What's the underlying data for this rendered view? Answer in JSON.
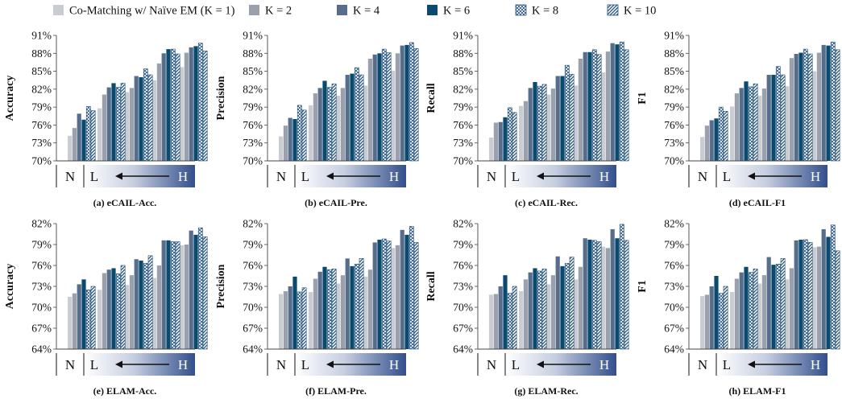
{
  "legend": {
    "items": [
      {
        "label": "Co-Matching w/ Naïve EM (K = 1)",
        "color": "#c9ccd3",
        "pattern": "solid"
      },
      {
        "label": "K = 2",
        "color": "#9aa1ad",
        "pattern": "solid"
      },
      {
        "label": "K = 4",
        "color": "#566e8c",
        "pattern": "solid"
      },
      {
        "label": "K = 6",
        "color": "#0b4a6f",
        "pattern": "solid"
      },
      {
        "label": "K = 8",
        "color": "#24527a",
        "pattern": "crosshatch"
      },
      {
        "label": "K = 10",
        "color": "#24527a",
        "pattern": "diagonal"
      }
    ]
  },
  "xaxis_groups": {
    "none_label": "N",
    "low_label": "L",
    "high_label": "H"
  },
  "chart_data": [
    {
      "type": "bar",
      "caption": "(a) eCAIL-Acc.",
      "ylabel": "Accuracy",
      "yticks": [
        "70%",
        "73%",
        "76%",
        "79%",
        "82%",
        "85%",
        "88%",
        "91%"
      ],
      "ylim": [
        70,
        91
      ],
      "categories": [
        "N",
        "L1",
        "L2",
        "L3",
        "H"
      ],
      "series": [
        {
          "values": [
            74.2,
            78.8,
            81.5,
            83.5,
            85.7
          ]
        },
        {
          "values": [
            75.5,
            81.1,
            82.2,
            86.3,
            88.1
          ]
        },
        {
          "values": [
            77.9,
            82.3,
            84.2,
            88.0,
            89.0
          ]
        },
        {
          "values": [
            76.9,
            83.0,
            84.0,
            88.7,
            89.2
          ]
        },
        {
          "values": [
            79.1,
            82.3,
            85.4,
            88.7,
            89.7
          ]
        },
        {
          "values": [
            78.4,
            83.0,
            84.4,
            87.9,
            88.4
          ]
        }
      ]
    },
    {
      "type": "bar",
      "caption": "(b) eCAIL-Pre.",
      "ylabel": "Precision",
      "yticks": [
        "70%",
        "73%",
        "76%",
        "79%",
        "82%",
        "85%",
        "88%",
        "91%"
      ],
      "ylim": [
        70,
        91
      ],
      "categories": [
        "N",
        "L1",
        "L2",
        "L3",
        "H"
      ],
      "series": [
        {
          "values": [
            74.1,
            79.3,
            80.9,
            82.6,
            85.1
          ]
        },
        {
          "values": [
            75.9,
            81.3,
            82.2,
            87.1,
            88.0
          ]
        },
        {
          "values": [
            77.2,
            82.2,
            84.4,
            87.8,
            89.3
          ]
        },
        {
          "values": [
            77.0,
            83.4,
            84.6,
            88.0,
            89.4
          ]
        },
        {
          "values": [
            79.3,
            82.3,
            85.6,
            88.7,
            89.8
          ]
        },
        {
          "values": [
            78.5,
            82.9,
            84.4,
            88.1,
            88.8
          ]
        }
      ]
    },
    {
      "type": "bar",
      "caption": "(c) eCAIL-Rec.",
      "ylabel": "Recall",
      "yticks": [
        "70%",
        "73%",
        "76%",
        "79%",
        "82%",
        "85%",
        "88%",
        "91%"
      ],
      "ylim": [
        70,
        91
      ],
      "categories": [
        "N",
        "L1",
        "L2",
        "L3",
        "H"
      ],
      "series": [
        {
          "values": [
            73.9,
            79.2,
            81.1,
            82.6,
            84.8
          ]
        },
        {
          "values": [
            76.4,
            80.0,
            82.1,
            87.1,
            88.3
          ]
        },
        {
          "values": [
            76.5,
            82.2,
            84.2,
            88.2,
            89.7
          ]
        },
        {
          "values": [
            77.3,
            83.2,
            84.2,
            88.2,
            89.5
          ]
        },
        {
          "values": [
            78.9,
            82.5,
            86.0,
            88.6,
            89.9
          ]
        },
        {
          "values": [
            78.1,
            82.8,
            84.5,
            87.8,
            88.6
          ]
        }
      ]
    },
    {
      "type": "bar",
      "caption": "(d) eCAIL-F1",
      "ylabel": "F1",
      "yticks": [
        "70%",
        "73%",
        "76%",
        "79%",
        "82%",
        "85%",
        "88%",
        "91%"
      ],
      "ylim": [
        70,
        91
      ],
      "categories": [
        "N",
        "L1",
        "L2",
        "L3",
        "H"
      ],
      "series": [
        {
          "values": [
            74.0,
            79.1,
            80.9,
            82.5,
            85.0
          ]
        },
        {
          "values": [
            75.9,
            81.3,
            82.1,
            87.2,
            88.1
          ]
        },
        {
          "values": [
            76.8,
            82.2,
            84.4,
            87.9,
            89.4
          ]
        },
        {
          "values": [
            77.1,
            83.3,
            84.4,
            88.1,
            89.3
          ]
        },
        {
          "values": [
            79.0,
            82.4,
            85.8,
            88.7,
            89.9
          ]
        },
        {
          "values": [
            78.3,
            82.9,
            84.4,
            87.9,
            88.6
          ]
        }
      ]
    },
    {
      "type": "bar",
      "caption": "(e) ELAM-Acc.",
      "ylabel": "Accuracy",
      "yticks": [
        "64%",
        "67%",
        "70%",
        "73%",
        "76%",
        "79%",
        "82%"
      ],
      "ylim": [
        64,
        82
      ],
      "categories": [
        "N",
        "L1",
        "L2",
        "L3",
        "H"
      ],
      "series": [
        {
          "values": [
            71.5,
            72.5,
            73.2,
            74.2,
            78.9
          ]
        },
        {
          "values": [
            72.0,
            74.9,
            74.6,
            76.0,
            79.0
          ]
        },
        {
          "values": [
            73.3,
            75.4,
            76.9,
            79.6,
            81.0
          ]
        },
        {
          "values": [
            74.0,
            75.6,
            76.7,
            79.6,
            80.4
          ]
        },
        {
          "values": [
            72.5,
            74.8,
            76.3,
            79.4,
            81.4
          ]
        },
        {
          "values": [
            73.0,
            76.0,
            77.4,
            79.4,
            80.1
          ]
        }
      ]
    },
    {
      "type": "bar",
      "caption": "(f) ELAM-Pre.",
      "ylabel": "Precision",
      "yticks": [
        "64%",
        "67%",
        "70%",
        "73%",
        "76%",
        "79%",
        "82%"
      ],
      "ylim": [
        64,
        82
      ],
      "categories": [
        "N",
        "L1",
        "L2",
        "L3",
        "H"
      ],
      "series": [
        {
          "values": [
            71.9,
            72.2,
            73.4,
            74.4,
            78.5
          ]
        },
        {
          "values": [
            72.3,
            74.1,
            74.6,
            75.4,
            78.9
          ]
        },
        {
          "values": [
            73.0,
            75.1,
            77.0,
            79.3,
            81.1
          ]
        },
        {
          "values": [
            74.4,
            75.8,
            75.9,
            79.7,
            80.4
          ]
        },
        {
          "values": [
            72.2,
            75.4,
            76.2,
            79.8,
            81.6
          ]
        },
        {
          "values": [
            72.8,
            75.5,
            77.0,
            79.5,
            79.3
          ]
        }
      ]
    },
    {
      "type": "bar",
      "caption": "(g) ELAM-Rec.",
      "ylabel": "Recall",
      "yticks": [
        "64%",
        "67%",
        "70%",
        "73%",
        "76%",
        "79%",
        "82%"
      ],
      "ylim": [
        64,
        82
      ],
      "categories": [
        "N",
        "L1",
        "L2",
        "L3",
        "H"
      ],
      "series": [
        {
          "values": [
            71.8,
            72.3,
            73.3,
            74.0,
            78.7
          ]
        },
        {
          "values": [
            71.9,
            74.0,
            74.6,
            75.8,
            78.5
          ]
        },
        {
          "values": [
            73.0,
            75.0,
            77.3,
            79.9,
            81.2
          ]
        },
        {
          "values": [
            74.6,
            75.6,
            75.9,
            79.7,
            79.9
          ]
        },
        {
          "values": [
            72.0,
            75.2,
            76.3,
            79.6,
            81.9
          ]
        },
        {
          "values": [
            73.0,
            75.5,
            77.2,
            79.4,
            79.6
          ]
        }
      ]
    },
    {
      "type": "bar",
      "caption": "(h) ELAM-F1",
      "ylabel": "F1",
      "yticks": [
        "64%",
        "67%",
        "70%",
        "73%",
        "76%",
        "79%",
        "82%"
      ],
      "ylim": [
        64,
        82
      ],
      "categories": [
        "N",
        "L1",
        "L2",
        "L3",
        "H"
      ],
      "series": [
        {
          "values": [
            71.6,
            72.2,
            73.4,
            74.0,
            78.6
          ]
        },
        {
          "values": [
            71.8,
            74.1,
            74.6,
            75.6,
            78.7
          ]
        },
        {
          "values": [
            73.0,
            75.0,
            77.2,
            79.6,
            81.2
          ]
        },
        {
          "values": [
            74.5,
            75.8,
            76.1,
            79.7,
            80.1
          ]
        },
        {
          "values": [
            72.0,
            75.0,
            76.2,
            79.7,
            81.8
          ]
        },
        {
          "values": [
            73.0,
            75.5,
            77.0,
            79.3,
            78.1
          ]
        }
      ]
    }
  ]
}
